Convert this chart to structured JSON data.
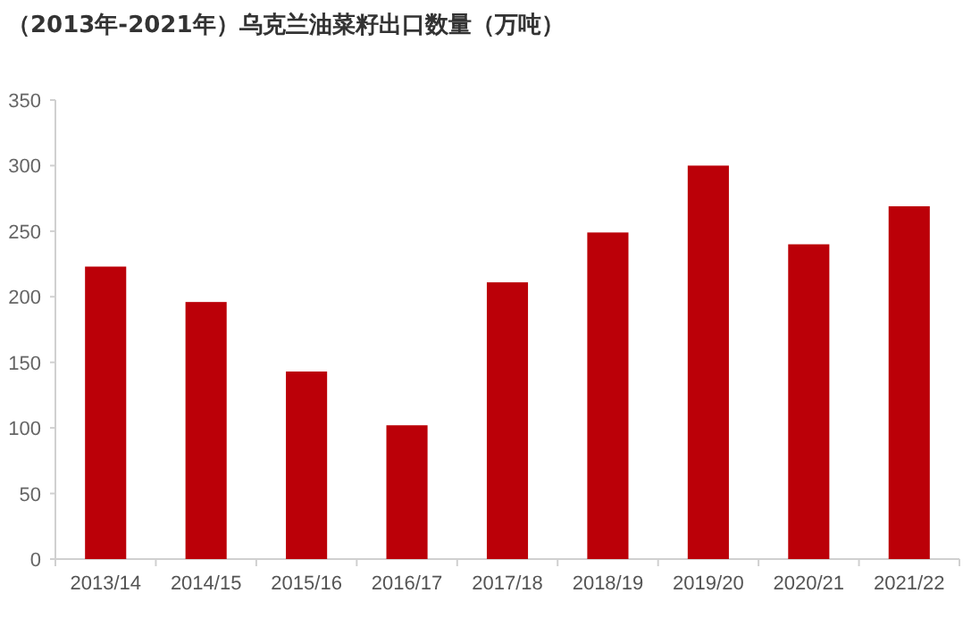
{
  "chart_data": {
    "type": "bar",
    "title": "（2013年-2021年）乌克兰油菜籽出口数量（万吨）",
    "categories": [
      "2013/14",
      "2014/15",
      "2015/16",
      "2016/17",
      "2017/18",
      "2018/19",
      "2019/20",
      "2020/21",
      "2021/22"
    ],
    "values": [
      223,
      196,
      143,
      102,
      211,
      249,
      300,
      240,
      269
    ],
    "color": "#bb0008",
    "ylim": [
      0,
      350
    ],
    "yticks": [
      0,
      50,
      100,
      150,
      200,
      250,
      300,
      350
    ],
    "grid": false
  }
}
